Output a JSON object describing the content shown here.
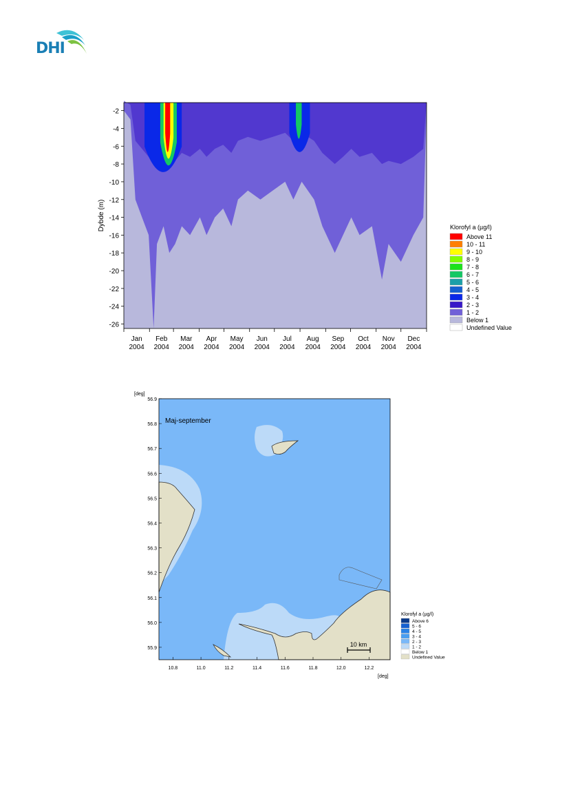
{
  "logo": {
    "text": "DHI"
  },
  "chart_data": [
    {
      "type": "heatmap",
      "title": "",
      "xlabel": "",
      "ylabel": "Dybde (m)",
      "ylim": [
        -26.5,
        -1.1
      ],
      "y_ticks": [
        "-2",
        "-4",
        "-6",
        "-8",
        "-10",
        "-12",
        "-14",
        "-16",
        "-18",
        "-20",
        "-22",
        "-24",
        "-26"
      ],
      "x_ticks": [
        {
          "month": "Jan",
          "year": "2004"
        },
        {
          "month": "Feb",
          "year": "2004"
        },
        {
          "month": "Mar",
          "year": "2004"
        },
        {
          "month": "Apr",
          "year": "2004"
        },
        {
          "month": "May",
          "year": "2004"
        },
        {
          "month": "Jun",
          "year": "2004"
        },
        {
          "month": "Jul",
          "year": "2004"
        },
        {
          "month": "Aug",
          "year": "2004"
        },
        {
          "month": "Sep",
          "year": "2004"
        },
        {
          "month": "Oct",
          "year": "2004"
        },
        {
          "month": "Nov",
          "year": "2004"
        },
        {
          "month": "Dec",
          "year": "2004"
        }
      ],
      "legend_title": "Klorofyl a (µg/l)",
      "legend_placement": "right",
      "legend": [
        {
          "label": "Above 11",
          "color": "#ff0000"
        },
        {
          "label": "10 - 11",
          "color": "#ff7f00"
        },
        {
          "label": "9 - 10",
          "color": "#ffff00"
        },
        {
          "label": "8 - 9",
          "color": "#80ff00"
        },
        {
          "label": "7 - 8",
          "color": "#1be21b"
        },
        {
          "label": "6 - 7",
          "color": "#14c864"
        },
        {
          "label": "5 - 6",
          "color": "#1a9fa8"
        },
        {
          "label": "4 - 5",
          "color": "#1560d0"
        },
        {
          "label": "3 - 4",
          "color": "#0a28e8"
        },
        {
          "label": "2 - 3",
          "color": "#3818c8"
        },
        {
          "label": "1 - 2",
          "color": "#7060d8"
        },
        {
          "label": "Below 1",
          "color": "#b8b8dc"
        },
        {
          "label": "Undefined Value",
          "color": "#ffffff"
        }
      ],
      "profile_bottom_depth": [
        {
          "day": 0,
          "depth": -2
        },
        {
          "day": 8,
          "depth": -3
        },
        {
          "day": 14,
          "depth": -12
        },
        {
          "day": 22,
          "depth": -14
        },
        {
          "day": 30,
          "depth": -16
        },
        {
          "day": 36,
          "depth": -26.5
        },
        {
          "day": 40,
          "depth": -17
        },
        {
          "day": 48,
          "depth": -15
        },
        {
          "day": 55,
          "depth": -18
        },
        {
          "day": 62,
          "depth": -17
        },
        {
          "day": 70,
          "depth": -15
        },
        {
          "day": 80,
          "depth": -16
        },
        {
          "day": 92,
          "depth": -14
        },
        {
          "day": 100,
          "depth": -16
        },
        {
          "day": 110,
          "depth": -14
        },
        {
          "day": 120,
          "depth": -13
        },
        {
          "day": 130,
          "depth": -15
        },
        {
          "day": 138,
          "depth": -12
        },
        {
          "day": 150,
          "depth": -11
        },
        {
          "day": 165,
          "depth": -12
        },
        {
          "day": 180,
          "depth": -11
        },
        {
          "day": 195,
          "depth": -10
        },
        {
          "day": 205,
          "depth": -12
        },
        {
          "day": 215,
          "depth": -10
        },
        {
          "day": 230,
          "depth": -12
        },
        {
          "day": 240,
          "depth": -15
        },
        {
          "day": 255,
          "depth": -18
        },
        {
          "day": 265,
          "depth": -16
        },
        {
          "day": 275,
          "depth": -14
        },
        {
          "day": 285,
          "depth": -16
        },
        {
          "day": 300,
          "depth": -15
        },
        {
          "day": 312,
          "depth": -21
        },
        {
          "day": 320,
          "depth": -17
        },
        {
          "day": 335,
          "depth": -19
        },
        {
          "day": 350,
          "depth": -16
        },
        {
          "day": 362,
          "depth": -14
        },
        {
          "day": 366,
          "depth": -2
        }
      ],
      "blooms": [
        {
          "start_day": 50,
          "end_day": 56,
          "top": -1.1,
          "bottom": -8,
          "class": "Above 11"
        },
        {
          "start_day": 48,
          "end_day": 60,
          "top": -1.1,
          "bottom": -9,
          "class": "9 - 10"
        },
        {
          "start_day": 44,
          "end_day": 64,
          "top": -1.1,
          "bottom": -10,
          "class": "6 - 7"
        },
        {
          "start_day": 25,
          "end_day": 70,
          "top": -1.1,
          "bottom": -11,
          "class": "3 - 4"
        },
        {
          "start_day": 208,
          "end_day": 215,
          "top": -1.1,
          "bottom": -6,
          "class": "6 - 7"
        },
        {
          "start_day": 200,
          "end_day": 225,
          "top": -1.1,
          "bottom": -8,
          "class": "3 - 4"
        }
      ]
    },
    {
      "type": "heatmap",
      "title": "Maj-september",
      "x_unit": "[deg]",
      "y_unit": "[deg]",
      "xlim": [
        10.7,
        12.35
      ],
      "ylim": [
        55.85,
        56.9
      ],
      "x_ticks": [
        "10.8",
        "11.0",
        "11.2",
        "11.4",
        "11.6",
        "11.8",
        "12.0",
        "12.2"
      ],
      "y_ticks": [
        "56.9",
        "56.8",
        "56.7",
        "56.6",
        "56.5",
        "56.4",
        "56.3",
        "56.2",
        "56.1",
        "56.0",
        "55.9"
      ],
      "scale_bar": "10 km",
      "legend_title": "Klorofyl a (µg/l)",
      "legend_placement": "bottom-right",
      "legend": [
        {
          "label": "Above 6",
          "color": "#0a3a8a"
        },
        {
          "label": "5 - 6",
          "color": "#1560d0"
        },
        {
          "label": "4 - 5",
          "color": "#2a82e6"
        },
        {
          "label": "3 - 4",
          "color": "#4a9ef0"
        },
        {
          "label": "2 - 3",
          "color": "#7ab8f8"
        },
        {
          "label": "1 - 2",
          "color": "#bcdaf8"
        },
        {
          "label": "Below 1",
          "color": "#ffffff"
        },
        {
          "label": "Undefined Value",
          "color": "#e3e0c8"
        }
      ],
      "sea_class": "2 - 3",
      "coastal_class": "1 - 2",
      "land_color": "#e3e0c8"
    }
  ]
}
